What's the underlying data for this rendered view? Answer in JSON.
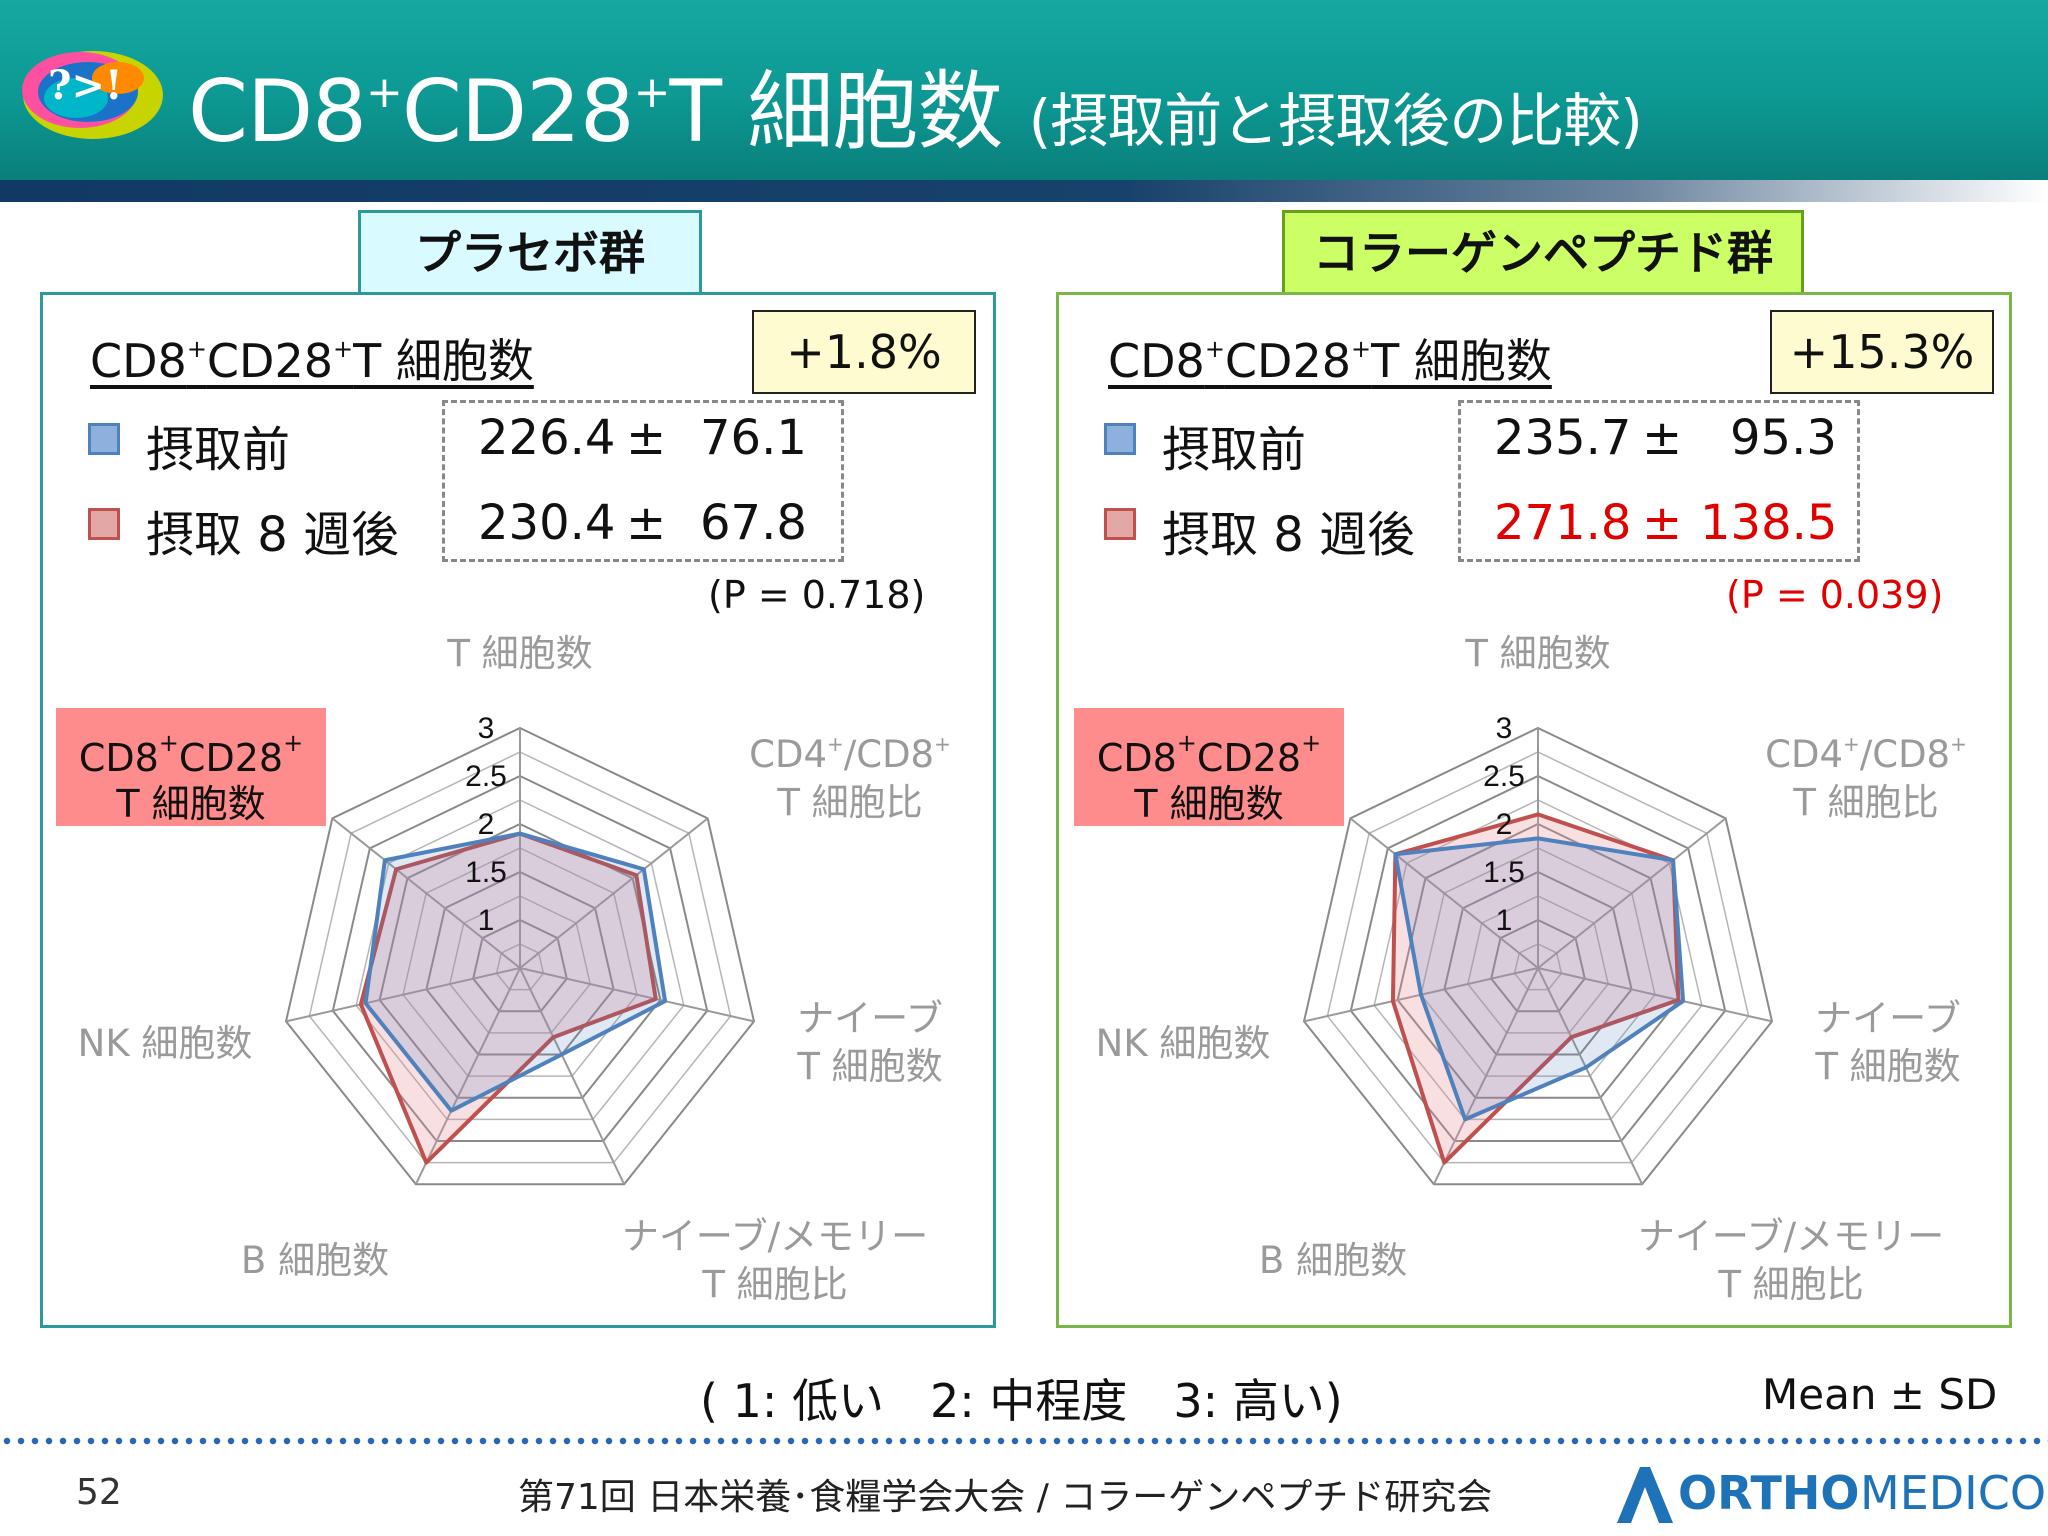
{
  "header": {
    "title_main": "CD8",
    "title_sup1": "+",
    "title_mid": "CD28",
    "title_sup2": "+",
    "title_rest": "T 細胞数 ",
    "title_sub": "(摂取前と摂取後の比較)",
    "logo_text": "?>!"
  },
  "scale_note": "( 1: 低い　2: 中程度　3: 高い)",
  "mean_sd": "Mean ± SD",
  "footer": {
    "page": "52",
    "conference": "第71回 日本栄養･食糧学会大会 / コラーゲンペプチド研究会",
    "brand_ortho": "ORTHO",
    "brand_medico": "MEDICO"
  },
  "colors": {
    "teal": "#0d9893",
    "before": "#4f81bd",
    "after": "#c0504d",
    "highlight_red": "#e00000",
    "pill": "#ff8c8c",
    "placebo_tab": "#d9fbff",
    "collagen_tab": "#ccff66"
  },
  "panels": [
    {
      "group_label": "プラセボ群",
      "heading_a": "CD8",
      "heading_b": "CD28",
      "heading_c": "T 細胞数",
      "sup": "+",
      "change": "+1.8%",
      "before_label": "摂取前",
      "after_label": "摂取 8 週後",
      "before_mean": "226.4",
      "before_sd": "76.1",
      "after_mean": "230.4",
      "after_sd": "67.8",
      "pm": "±",
      "p_value": "(P = 0.718)",
      "after_highlight": false,
      "pill_line1": "CD8",
      "pill_line1b": "CD28",
      "pill_sup": "+",
      "pill_line2": "T 細胞数"
    },
    {
      "group_label": "コラーゲンペプチド群",
      "heading_a": "CD8",
      "heading_b": "CD28",
      "heading_c": "T 細胞数",
      "sup": "+",
      "change": "+15.3%",
      "before_label": "摂取前",
      "after_label": "摂取 8 週後",
      "before_mean": "235.7",
      "before_sd": "95.3",
      "after_mean": "271.8",
      "after_sd": "138.5",
      "pm": "±",
      "p_value": "(P = 0.039)",
      "after_highlight": true,
      "pill_line1": "CD8",
      "pill_line1b": "CD28",
      "pill_sup": "+",
      "pill_line2": "T 細胞数"
    }
  ],
  "axis_labels": {
    "t": "T 細胞数",
    "cd4cd8_line1": "CD4",
    "cd4cd8_line1b": "/CD8",
    "cd4cd8_sup": "+",
    "cd4cd8_line2": "T 細胞比",
    "naive_line1": "ナイーブ",
    "naive_line2": "T 細胞数",
    "nm_line1": "ナイーブ/メモリー",
    "nm_line2": "T 細胞比",
    "b": "B 細胞数",
    "nk": "NK 細胞数"
  },
  "chart_data": [
    {
      "type": "radar",
      "categories": [
        "T 細胞数",
        "CD4+/CD8+ T 細胞比",
        "ナイーブ T 細胞数",
        "ナイーブ/メモリー T 細胞比",
        "B 細胞数",
        "NK 細胞数",
        "CD8+CD28+ T 細胞数"
      ],
      "ticks": [
        "1",
        "1.5",
        "2",
        "2.5",
        "3"
      ],
      "rlim": [
        0.5,
        3
      ],
      "series": [
        {
          "name": "摂取前",
          "color": "#4f81bd",
          "values": [
            1.9,
            2.15,
            2.05,
            1.5,
            2.15,
            2.15,
            2.3
          ]
        },
        {
          "name": "摂取 8 週後",
          "color": "#c0504d",
          "values": [
            1.9,
            2.05,
            1.95,
            1.3,
            2.75,
            2.2,
            2.15
          ]
        }
      ]
    },
    {
      "type": "radar",
      "categories": [
        "T 細胞数",
        "CD4+/CD8+ T 細胞比",
        "ナイーブ T 細胞数",
        "ナイーブ/メモリー T 細胞比",
        "B 細胞数",
        "NK 細胞数",
        "CD8+CD28+ T 細胞数"
      ],
      "ticks": [
        "1",
        "1.5",
        "2",
        "2.5",
        "3"
      ],
      "rlim": [
        0.5,
        3
      ],
      "series": [
        {
          "name": "摂取前",
          "color": "#4f81bd",
          "values": [
            1.85,
            2.3,
            2.05,
            1.65,
            2.25,
            1.75,
            2.4
          ]
        },
        {
          "name": "摂取 8 週後",
          "color": "#c0504d",
          "values": [
            2.1,
            2.3,
            2.0,
            1.3,
            2.75,
            2.05,
            2.4
          ]
        }
      ]
    }
  ]
}
